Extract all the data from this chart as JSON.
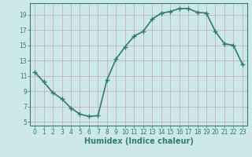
{
  "x": [
    0,
    1,
    2,
    3,
    4,
    5,
    6,
    7,
    8,
    9,
    10,
    11,
    12,
    13,
    14,
    15,
    16,
    17,
    18,
    19,
    20,
    21,
    22,
    23
  ],
  "y": [
    11.5,
    10.2,
    8.8,
    8.0,
    6.8,
    6.0,
    5.7,
    5.8,
    10.5,
    13.2,
    14.8,
    16.2,
    16.8,
    18.4,
    19.2,
    19.4,
    19.8,
    19.8,
    19.3,
    19.2,
    16.8,
    15.2,
    15.0,
    12.5
  ],
  "line_color": "#2e7d6e",
  "marker": "+",
  "marker_size": 4,
  "bg_color": "#cce8e8",
  "grid_color_major": "#c8a8a8",
  "xlabel": "Humidex (Indice chaleur)",
  "xlabel_fontsize": 7,
  "yticks": [
    5,
    7,
    9,
    11,
    13,
    15,
    17,
    19
  ],
  "xticks": [
    0,
    1,
    2,
    3,
    4,
    5,
    6,
    7,
    8,
    9,
    10,
    11,
    12,
    13,
    14,
    15,
    16,
    17,
    18,
    19,
    20,
    21,
    22,
    23
  ],
  "xlim": [
    -0.5,
    23.5
  ],
  "ylim": [
    4.5,
    20.5
  ],
  "tick_fontsize": 5.5,
  "linewidth": 1.2,
  "figsize": [
    3.2,
    2.0
  ],
  "dpi": 100
}
